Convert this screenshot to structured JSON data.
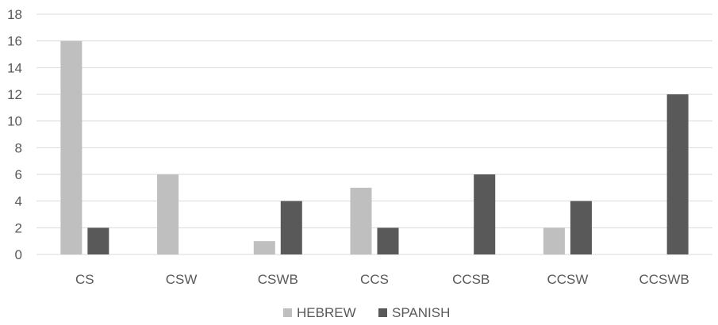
{
  "chart_data": {
    "type": "bar",
    "title": "",
    "xlabel": "",
    "ylabel": "",
    "categories": [
      "CS",
      "CSW",
      "CSWB",
      "CCS",
      "CCSB",
      "CCSW",
      "CCSWB"
    ],
    "series": [
      {
        "name": "HEBREW",
        "values": [
          16,
          6,
          1,
          5,
          0,
          2,
          0
        ],
        "color": "#bfbfbf"
      },
      {
        "name": "SPANISH",
        "values": [
          2,
          0,
          4,
          2,
          6,
          4,
          12
        ],
        "color": "#595959"
      }
    ],
    "ylim": [
      0,
      18
    ],
    "yticks": [
      0,
      2,
      4,
      6,
      8,
      10,
      12,
      14,
      16,
      18
    ],
    "grid": true,
    "legend_position": "bottom"
  }
}
